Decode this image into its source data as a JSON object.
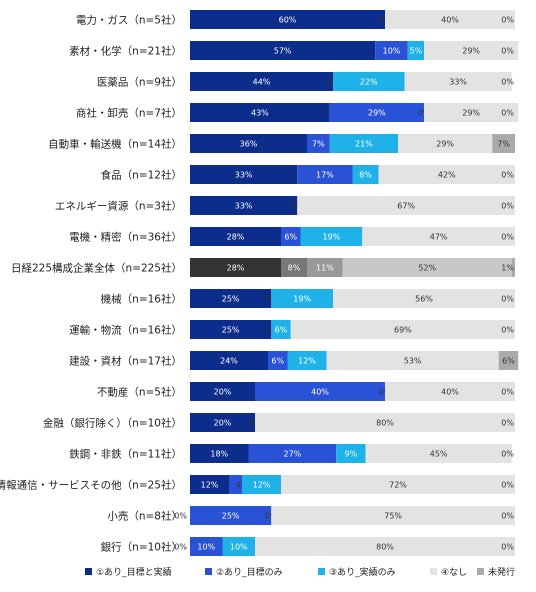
{
  "chart_data": {
    "type": "bar",
    "orientation": "horizontal",
    "stacked": true,
    "categories": [
      "電力・ガス（n=5社）",
      "素材・化学（n=21社）",
      "医薬品（n=9社）",
      "商社・卸売（n=7社）",
      "自動車・輸送機（n=14社）",
      "食品（n=12社）",
      "エネルギー資源（n=3社）",
      "電機・精密（n=36社）",
      "日経225構成企業全体（n=225社）",
      "機械（n=16社）",
      "運輸・物流（n=16社）",
      "建設・資材（n=17社）",
      "不動産（n=5社）",
      "金融（銀行除く）（n=10社）",
      "鉄鋼・非鉄（n=11社）",
      "情報通信・サービスその他（n=25社）",
      "小売（n=8社）",
      "銀行（n=10社）"
    ],
    "series": [
      {
        "name": "①あり_目標と実績",
        "color": "#0d2d8c",
        "values": [
          60,
          57,
          44,
          43,
          36,
          33,
          33,
          28,
          28,
          25,
          25,
          24,
          20,
          20,
          18,
          12,
          0,
          0
        ]
      },
      {
        "name": "②あり_目標のみ",
        "color": "#2a52d6",
        "values": [
          0,
          10,
          0,
          29,
          7,
          17,
          0,
          6,
          8,
          0,
          0,
          6,
          40,
          0,
          27,
          4,
          25,
          10
        ]
      },
      {
        "name": "③あり_実績のみ",
        "color": "#1eb2e8",
        "values": [
          0,
          5,
          22,
          0,
          21,
          8,
          0,
          19,
          11,
          19,
          6,
          12,
          0,
          0,
          9,
          12,
          0,
          10
        ]
      },
      {
        "name": "④なし",
        "color": "#e3e3e3",
        "values": [
          40,
          29,
          33,
          29,
          29,
          42,
          67,
          47,
          52,
          56,
          69,
          53,
          40,
          80,
          45,
          72,
          75,
          80
        ]
      },
      {
        "name": "未発行",
        "color": "#aaaaaa",
        "values": [
          0,
          0,
          0,
          0,
          7,
          0,
          0,
          0,
          1,
          0,
          0,
          6,
          0,
          0,
          0,
          0,
          0,
          0
        ]
      }
    ],
    "highlight_category_colors": [
      "#333333",
      "#777777",
      "#999999",
      "#c8c8c8",
      "#aaaaaa"
    ],
    "highlight_index": 8,
    "xlim": [
      0,
      100
    ],
    "legend_position": "bottom",
    "grid": false
  }
}
